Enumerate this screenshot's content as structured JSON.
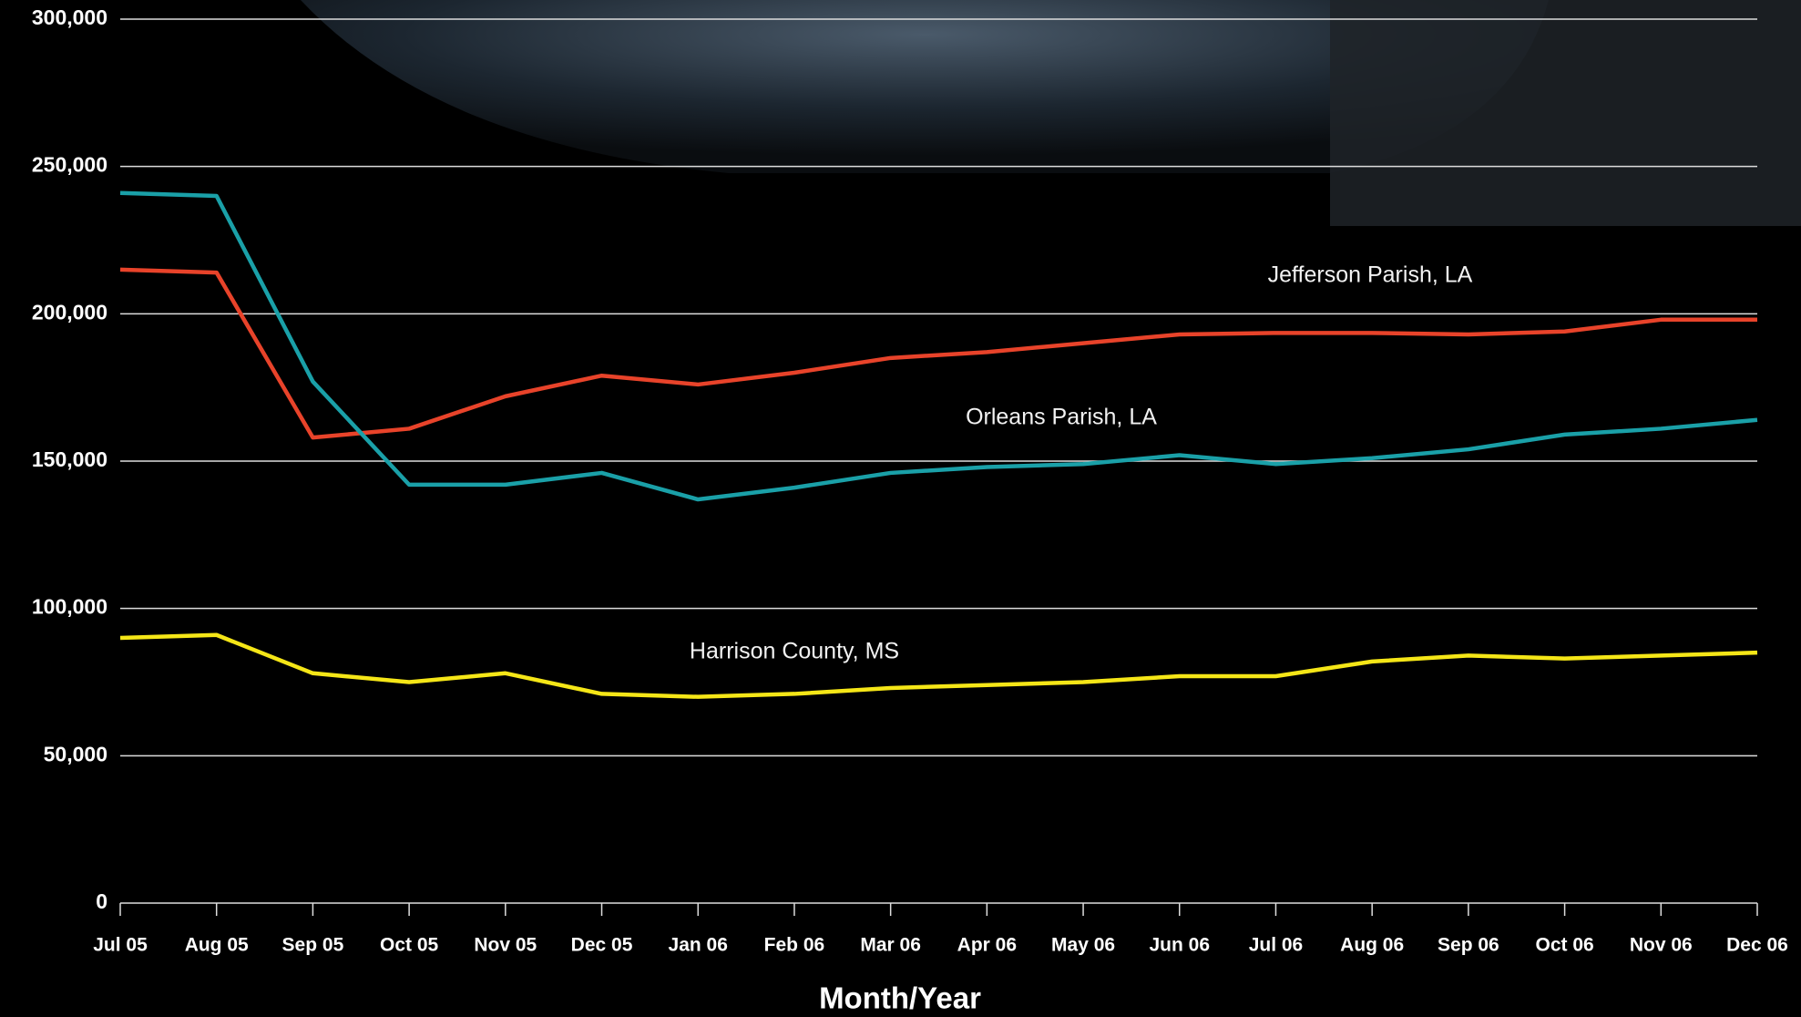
{
  "chart_data": {
    "type": "line",
    "x_label": "Month/Year",
    "categories": [
      "Jul 05",
      "Aug 05",
      "Sep 05",
      "Oct 05",
      "Nov 05",
      "Dec 05",
      "Jan 06",
      "Feb 06",
      "Mar 06",
      "Apr 06",
      "May 06",
      "Jun 06",
      "Jul 06",
      "Aug 06",
      "Sep 06",
      "Oct 06",
      "Nov 06",
      "Dec 06"
    ],
    "series": [
      {
        "name": "Jefferson Parish, LA",
        "color": "#e8432a",
        "values": [
          215000,
          214000,
          158000,
          161000,
          172000,
          179000,
          176000,
          180000,
          185000,
          187000,
          190000,
          193000,
          193500,
          193500,
          193000,
          194000,
          198000,
          198000
        ]
      },
      {
        "name": "Orleans Parish, LA",
        "color": "#1aa0a8",
        "values": [
          241000,
          240000,
          177000,
          142000,
          142000,
          146000,
          137000,
          141000,
          146000,
          148000,
          149000,
          152000,
          149000,
          151000,
          154000,
          159000,
          161000,
          164000
        ]
      },
      {
        "name": "Harrison County, MS",
        "color": "#f5e617",
        "values": [
          90000,
          91000,
          78000,
          75000,
          78000,
          71000,
          70000,
          71000,
          73000,
          74000,
          75000,
          77000,
          77000,
          82000,
          84000,
          83000,
          84000,
          85000
        ]
      }
    ],
    "ylim": [
      0,
      300000
    ],
    "yticks": [
      0,
      {
        "value": 50000,
        "label": "50,000"
      },
      {
        "value": 100000,
        "label": "100,000"
      },
      {
        "value": 150000,
        "label": "150,000"
      },
      {
        "value": 200000,
        "label": "200,000"
      },
      {
        "value": 250000,
        "label": "250,000"
      },
      {
        "value": 300000,
        "label": "300,000"
      }
    ],
    "grid": true
  }
}
